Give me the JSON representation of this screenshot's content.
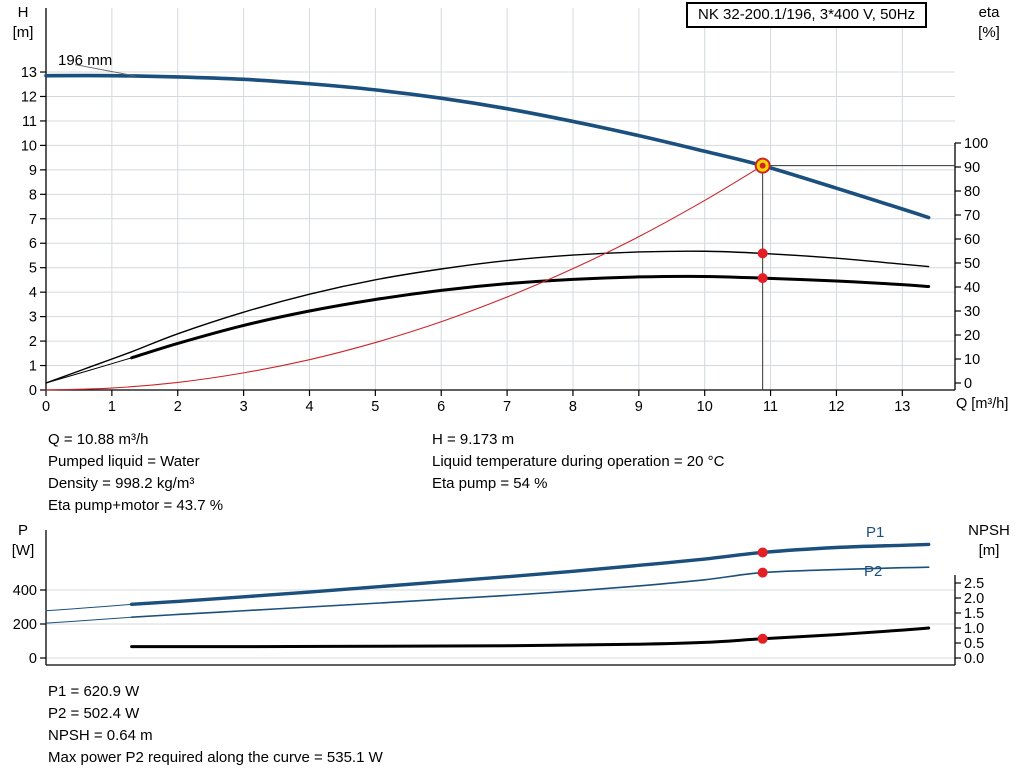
{
  "pump_title": "NK 32-200.1/196, 3*400 V, 50Hz",
  "top_chart": {
    "h_axis_title_1": "H",
    "h_axis_title_2": "[m]",
    "eta_axis_title_1": "eta",
    "eta_axis_title_2": "[%]",
    "q_axis_title": "Q [m³/h]",
    "impeller_label": "196 mm"
  },
  "operating_info": {
    "q": "Q = 10.88 m³/h",
    "pumped_liquid": "Pumped liquid = Water",
    "density": "Density = 998.2 kg/m³",
    "eta_pump_motor": "Eta pump+motor = 43.7 %",
    "h": "H = 9.173 m",
    "liquid_temp": "Liquid temperature during operation = 20 °C",
    "eta_pump": "Eta pump = 54 %"
  },
  "power_chart": {
    "p_axis_title_1": "P",
    "p_axis_title_2": "[W]",
    "npsh_axis_title_1": "NPSH",
    "npsh_axis_title_2": "[m]",
    "p1_label": "P1",
    "p2_label": "P2"
  },
  "power_info": {
    "p1": "P1 = 620.9 W",
    "p2": "P2 = 502.4 W",
    "npsh": "NPSH = 0.64 m",
    "max_p2": "Max power P2 required along the curve = 535.1 W"
  },
  "chart_data": [
    {
      "type": "line",
      "title": "NK 32-200.1/196, 3*400 V, 50Hz",
      "xlabel": "Q [m³/h]",
      "ylabel_left": "H [m]",
      "ylabel_right": "eta [%]",
      "x_range": [
        0,
        13.8
      ],
      "y_left_range": [
        0,
        15.6
      ],
      "y_right_range": [
        0,
        100
      ],
      "x_ticks": [
        0,
        1,
        2,
        3,
        4,
        5,
        6,
        7,
        8,
        9,
        10,
        11,
        12,
        13
      ],
      "y_left_ticks": [
        0,
        1,
        2,
        3,
        4,
        5,
        6,
        7,
        8,
        9,
        10,
        11,
        12,
        13
      ],
      "y_right_ticks": [
        0,
        10,
        20,
        30,
        40,
        50,
        60,
        70,
        80,
        90,
        100
      ],
      "duty_point": {
        "q": 10.88,
        "h": 9.173,
        "eta_pump": 54,
        "eta_pump_motor": 43.7
      },
      "series": [
        {
          "name": "head-curve-196mm",
          "axis": "left",
          "color": "#1b4f7e",
          "width": 3.6,
          "points": [
            [
              0,
              12.85
            ],
            [
              1,
              12.85
            ],
            [
              2,
              12.8
            ],
            [
              3,
              12.7
            ],
            [
              4,
              12.52
            ],
            [
              5,
              12.27
            ],
            [
              6,
              11.93
            ],
            [
              7,
              11.5
            ],
            [
              8,
              10.98
            ],
            [
              9,
              10.4
            ],
            [
              10,
              9.76
            ],
            [
              10.88,
              9.173
            ],
            [
              12,
              8.25
            ],
            [
              13,
              7.4
            ],
            [
              13.4,
              7.05
            ]
          ]
        },
        {
          "name": "impeller-label-leader",
          "axis": "left",
          "color": "#666666",
          "width": 1,
          "straight": true,
          "points": [
            [
              0.45,
              13.3
            ],
            [
              1.35,
              12.84
            ]
          ]
        },
        {
          "name": "eta-pump-curve",
          "axis": "right",
          "color": "#000000",
          "width": 1.4,
          "points": [
            [
              0,
              0
            ],
            [
              0.6,
              6
            ],
            [
              1.3,
              13
            ],
            [
              2,
              20.5
            ],
            [
              3,
              29.5
            ],
            [
              4,
              37
            ],
            [
              5,
              43
            ],
            [
              6,
              47.5
            ],
            [
              7,
              51
            ],
            [
              8,
              53.3
            ],
            [
              9,
              54.6
            ],
            [
              10,
              54.9
            ],
            [
              10.88,
              54
            ],
            [
              12,
              52
            ],
            [
              13,
              49.5
            ],
            [
              13.4,
              48.5
            ]
          ]
        },
        {
          "name": "eta-pump-motor-lead",
          "axis": "right",
          "color": "#000000",
          "width": 1,
          "points": [
            [
              0,
              0
            ],
            [
              0.65,
              5.2
            ],
            [
              1.3,
              10.5
            ]
          ]
        },
        {
          "name": "eta-pump-motor-curve",
          "axis": "right",
          "color": "#000000",
          "width": 3,
          "points": [
            [
              1.3,
              10.5
            ],
            [
              2,
              16.5
            ],
            [
              3,
              24
            ],
            [
              4,
              30
            ],
            [
              5,
              34.8
            ],
            [
              6,
              38.6
            ],
            [
              7,
              41.4
            ],
            [
              8,
              43.2
            ],
            [
              9,
              44.2
            ],
            [
              10,
              44.4
            ],
            [
              10.88,
              43.7
            ],
            [
              12,
              42.5
            ],
            [
              13,
              41
            ],
            [
              13.4,
              40.2
            ]
          ]
        },
        {
          "name": "system-curve",
          "axis": "left",
          "color": "#cc2529",
          "width": 1.1,
          "points": [
            [
              0,
              0
            ],
            [
              1,
              0.08
            ],
            [
              2,
              0.31
            ],
            [
              3,
              0.7
            ],
            [
              4,
              1.24
            ],
            [
              5,
              1.94
            ],
            [
              6,
              2.79
            ],
            [
              7,
              3.8
            ],
            [
              8,
              4.96
            ],
            [
              9,
              6.27
            ],
            [
              10,
              7.75
            ],
            [
              10.88,
              9.173
            ]
          ]
        },
        {
          "name": "duty-vline",
          "axis": "left",
          "color": "#333333",
          "width": 1,
          "straight": true,
          "points": [
            [
              10.88,
              0
            ],
            [
              10.88,
              9.173
            ]
          ]
        },
        {
          "name": "duty-hline",
          "axis": "left",
          "color": "#333333",
          "width": 1,
          "straight": true,
          "points": [
            [
              10.88,
              9.173
            ],
            [
              13.8,
              9.173
            ]
          ]
        }
      ],
      "markers": [
        {
          "name": "duty-point",
          "x": 10.88,
          "v": 9.173,
          "axis": "left",
          "r": 7,
          "fill": "#ffd500",
          "stroke": "#cc2529",
          "inner": {
            "r": 3,
            "fill": "#cc2529"
          }
        },
        {
          "name": "eta-pump-point",
          "x": 10.88,
          "v": 54,
          "axis": "right",
          "r": 5,
          "fill": "#e31e24"
        },
        {
          "name": "eta-pump-motor-point",
          "x": 10.88,
          "v": 43.7,
          "axis": "right",
          "r": 5,
          "fill": "#e31e24"
        }
      ]
    },
    {
      "type": "line",
      "title": "Power and NPSH",
      "xlabel": "Q [m³/h]",
      "ylabel_left": "P [W]",
      "ylabel_right": "NPSH [m]",
      "x_range": [
        0,
        13.8
      ],
      "y_left_range": [
        0,
        750
      ],
      "y_right_range": [
        0,
        2.5
      ],
      "x_ticks": [],
      "y_left_ticks": [
        0,
        200,
        400
      ],
      "y_right_ticks": [
        0,
        0.5,
        1,
        1.5,
        2,
        2.5
      ],
      "duty_point": {
        "q": 10.88,
        "p1": 620.9,
        "p2": 502.4,
        "npsh": 0.64
      },
      "series": [
        {
          "name": "p1-lead",
          "axis": "left",
          "color": "#1b4f7e",
          "width": 1,
          "points": [
            [
              0,
              278
            ],
            [
              0.65,
              296
            ],
            [
              1.3,
              316
            ]
          ]
        },
        {
          "name": "p1-curve",
          "axis": "left",
          "color": "#1b4f7e",
          "width": 3.4,
          "points": [
            [
              1.3,
              316
            ],
            [
              2,
              333
            ],
            [
              3,
              360
            ],
            [
              4,
              388
            ],
            [
              5,
              418
            ],
            [
              6,
              448
            ],
            [
              7,
              478
            ],
            [
              8,
              510
            ],
            [
              9,
              545
            ],
            [
              10,
              582
            ],
            [
              10.88,
              620.9
            ],
            [
              12,
              650
            ],
            [
              13,
              663
            ],
            [
              13.4,
              668
            ]
          ]
        },
        {
          "name": "p2-lead",
          "axis": "left",
          "color": "#1b4f7e",
          "width": 1,
          "points": [
            [
              0,
              205
            ],
            [
              0.65,
              222
            ],
            [
              1.3,
              240
            ]
          ]
        },
        {
          "name": "p2-curve",
          "axis": "left",
          "color": "#1b4f7e",
          "width": 1.6,
          "points": [
            [
              1.3,
              240
            ],
            [
              2,
              256
            ],
            [
              3,
              278
            ],
            [
              4,
              300
            ],
            [
              5,
              322
            ],
            [
              6,
              345
            ],
            [
              7,
              368
            ],
            [
              8,
              394
            ],
            [
              9,
              424
            ],
            [
              10,
              460
            ],
            [
              10.88,
              502.4
            ],
            [
              12,
              520
            ],
            [
              13,
              531
            ],
            [
              13.4,
              534
            ]
          ]
        },
        {
          "name": "npsh-curve",
          "axis": "right",
          "color": "#000000",
          "width": 3,
          "points": [
            [
              1.3,
              0.38
            ],
            [
              3,
              0.38
            ],
            [
              5,
              0.39
            ],
            [
              7,
              0.41
            ],
            [
              9,
              0.46
            ],
            [
              10,
              0.52
            ],
            [
              10.88,
              0.64
            ],
            [
              12,
              0.78
            ],
            [
              13,
              0.93
            ],
            [
              13.4,
              1.0
            ]
          ]
        }
      ],
      "markers": [
        {
          "name": "p1-point",
          "x": 10.88,
          "v": 620.9,
          "axis": "left",
          "r": 5,
          "fill": "#e31e24"
        },
        {
          "name": "p2-point",
          "x": 10.88,
          "v": 502.4,
          "axis": "left",
          "r": 5,
          "fill": "#e31e24"
        },
        {
          "name": "npsh-point",
          "x": 10.88,
          "v": 0.64,
          "axis": "right",
          "r": 5,
          "fill": "#e31e24"
        }
      ]
    }
  ]
}
